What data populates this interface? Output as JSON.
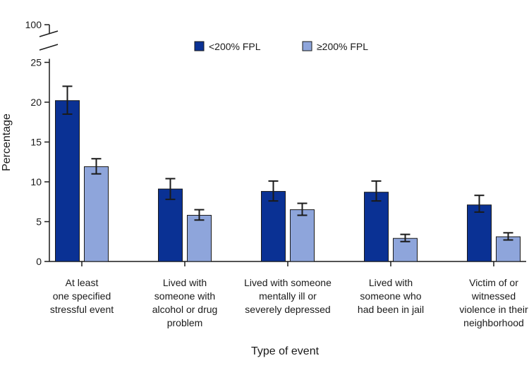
{
  "chart_data": {
    "type": "bar",
    "title": "",
    "xlabel": "Type of event",
    "ylabel": "Percentage",
    "ylim": [
      0,
      25
    ],
    "y_break_top_label": "100",
    "yticks": [
      0,
      5,
      10,
      15,
      20,
      25
    ],
    "categories": [
      [
        "At least",
        "one specified",
        "stressful event"
      ],
      [
        "Lived with",
        "someone with",
        "alcohol or drug",
        "problem"
      ],
      [
        "Lived with someone",
        "mentally ill or",
        "severely depressed"
      ],
      [
        "Lived with",
        "someone who",
        "had been in jail"
      ],
      [
        "Victim of or",
        "witnessed",
        "violence in their",
        "neighborhood"
      ]
    ],
    "series": [
      {
        "name": "<200% FPL",
        "color": "#0a3194",
        "values": [
          20.2,
          9.1,
          8.8,
          8.7,
          7.1
        ],
        "ci_low": [
          18.5,
          7.8,
          7.6,
          7.6,
          6.2
        ],
        "ci_high": [
          22.0,
          10.4,
          10.1,
          10.1,
          8.3
        ]
      },
      {
        "name": "≥200% FPL",
        "color": "#8ea5db",
        "values": [
          11.9,
          5.8,
          6.5,
          2.9,
          3.1
        ],
        "ci_low": [
          11.0,
          5.2,
          5.8,
          2.5,
          2.7
        ],
        "ci_high": [
          12.9,
          6.5,
          7.3,
          3.4,
          3.6
        ]
      }
    ],
    "legend_position": "top-center"
  }
}
